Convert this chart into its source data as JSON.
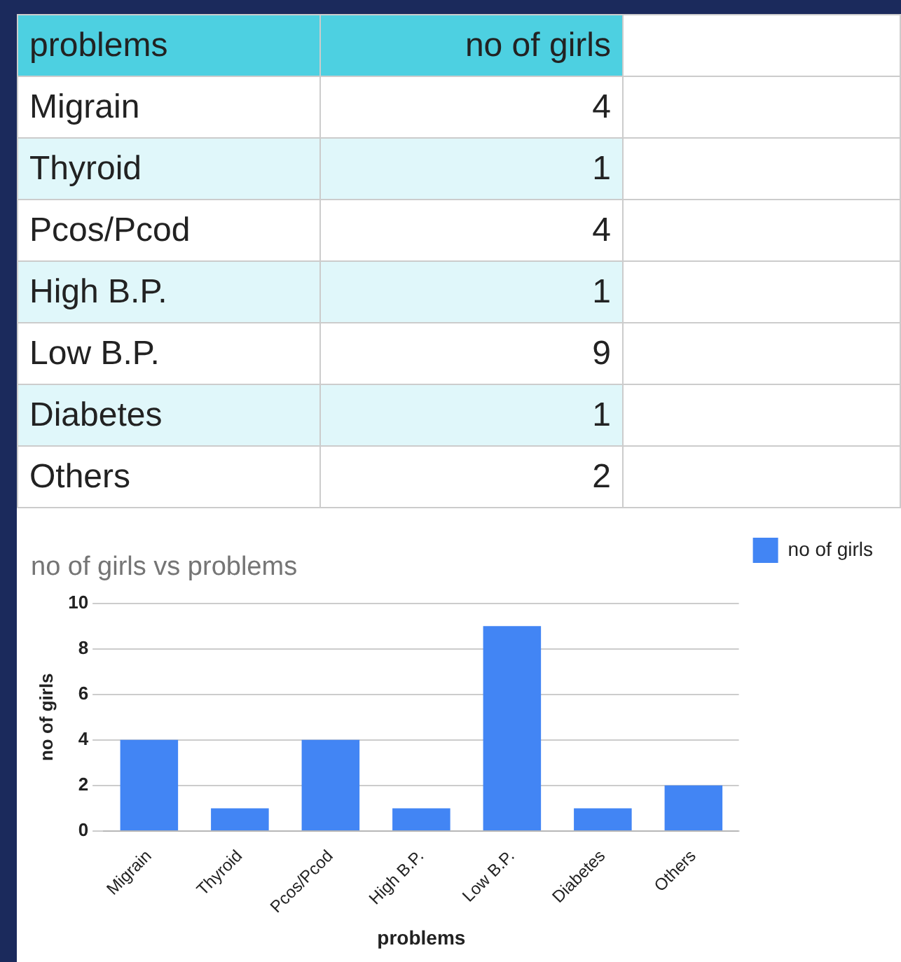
{
  "chart_data": [
    {
      "type": "other",
      "xlabel": "problems",
      "ylabel": "no of girls",
      "categories": [
        "Migrain",
        "Thyroid",
        "Pcos/Pcod",
        "High B.P.",
        "Low B.P.",
        "Diabetes",
        "Others"
      ],
      "values": [
        4,
        1,
        4,
        1,
        9,
        1,
        2
      ],
      "data_labels": true
    },
    {
      "type": "bar",
      "title": "no of girls vs problems",
      "xlabel": "problems",
      "ylabel": "no of girls",
      "categories": [
        "Migrain",
        "Thyroid",
        "Pcos/Pcod",
        "High B.P.",
        "Low B.P.",
        "Diabetes",
        "Others"
      ],
      "series": [
        {
          "name": "no of girls",
          "color": "#4285f4",
          "values": [
            4,
            1,
            4,
            1,
            9,
            1,
            2
          ]
        }
      ],
      "ylim": [
        0,
        10
      ],
      "yticks": [
        0,
        2,
        4,
        6,
        8,
        10
      ],
      "grid": "y",
      "legend": "top right"
    }
  ]
}
